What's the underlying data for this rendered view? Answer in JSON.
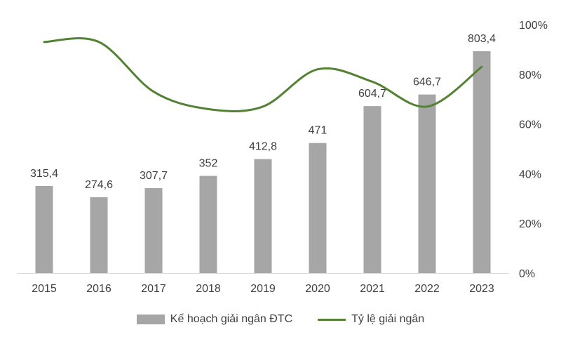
{
  "chart_data": {
    "type": "bar",
    "categories": [
      "2015",
      "2016",
      "2017",
      "2018",
      "2019",
      "2020",
      "2021",
      "2022",
      "2023"
    ],
    "series": [
      {
        "name": "Kế hoạch giải ngân ĐTC",
        "type": "bar",
        "axis": "left",
        "values": [
          315.4,
          274.6,
          307.7,
          352,
          412.8,
          471,
          604.7,
          646.7,
          803.4
        ],
        "labels": [
          "315,4",
          "274,6",
          "307,7",
          "352",
          "412,8",
          "471",
          "604,7",
          "646,7",
          "803,4"
        ],
        "color": "#a6a6a6"
      },
      {
        "name": "Tỷ lệ giải ngân",
        "type": "line",
        "axis": "right",
        "values": [
          93,
          93,
          73,
          66,
          67,
          82,
          77,
          67,
          83
        ],
        "color": "#548235",
        "smooth": true
      }
    ],
    "y_left_range": [
      0,
      900
    ],
    "y_right_range": [
      0,
      100
    ],
    "y_right_ticks": [
      "0%",
      "20%",
      "40%",
      "60%",
      "80%",
      "100%"
    ],
    "y_right_values": [
      0,
      20,
      40,
      60,
      80,
      100
    ],
    "grid": false,
    "legend_position": "bottom"
  },
  "legend": {
    "bar_label": "Kế hoạch giải ngân ĐTC",
    "line_label": "Tỷ lệ giải ngân"
  }
}
